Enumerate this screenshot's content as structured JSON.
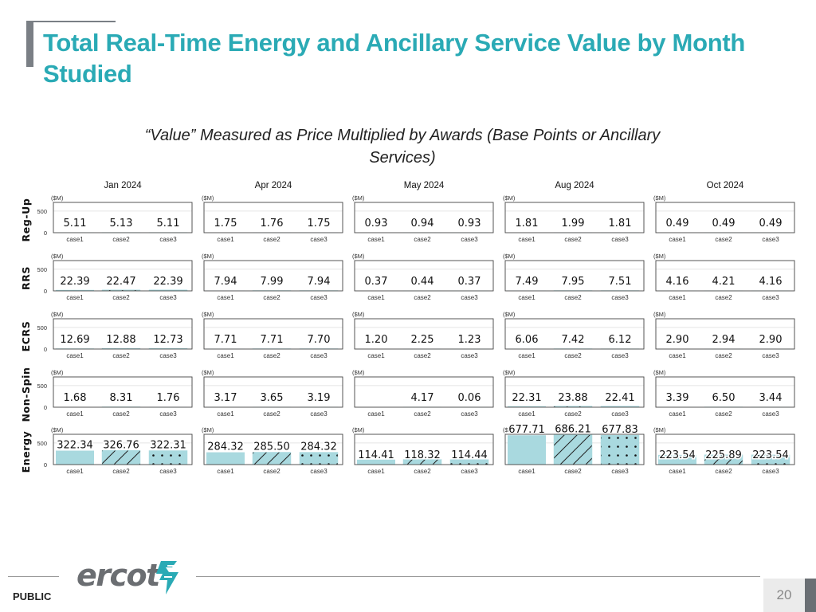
{
  "slide": {
    "title": "Total Real-Time Energy and Ancillary Service Value by Month Studied",
    "subtitle": "“Value” Measured as Price Multiplied by Awards (Base Points or Ancillary Services)",
    "footer_label": "PUBLIC",
    "logo_text": "ercot",
    "page_number": "20"
  },
  "colors": {
    "title": "#2aaab5",
    "bar_fill": "#a9d9df",
    "frame": "#444444",
    "grid": "#dcdcdc"
  },
  "chart_data": {
    "type": "bar",
    "months": [
      "Jan 2024",
      "Apr 2024",
      "May 2024",
      "Aug 2024",
      "Oct 2024"
    ],
    "services": [
      "Reg-Up",
      "RRS",
      "ECRS",
      "Non-Spin",
      "Energy"
    ],
    "categories": [
      "case1",
      "case2",
      "case3"
    ],
    "case_patterns": [
      "solid",
      "hatch",
      "dots"
    ],
    "unit_label": "($M)",
    "yticks": [
      "0",
      "500"
    ],
    "ylim": [
      0,
      700
    ],
    "grid": true,
    "panels": [
      [
        [
          5.11,
          5.13,
          5.11
        ],
        [
          1.75,
          1.76,
          1.75
        ],
        [
          0.93,
          0.94,
          0.93
        ],
        [
          1.81,
          1.99,
          1.81
        ],
        [
          0.49,
          0.49,
          0.49
        ]
      ],
      [
        [
          22.39,
          22.47,
          22.39
        ],
        [
          7.94,
          7.99,
          7.94
        ],
        [
          0.37,
          0.44,
          0.37
        ],
        [
          7.49,
          7.95,
          7.51
        ],
        [
          4.16,
          4.21,
          4.16
        ]
      ],
      [
        [
          12.69,
          12.88,
          12.73
        ],
        [
          7.71,
          7.71,
          7.7
        ],
        [
          1.2,
          2.25,
          1.23
        ],
        [
          6.06,
          7.42,
          6.12
        ],
        [
          2.9,
          2.94,
          2.9
        ]
      ],
      [
        [
          1.68,
          8.31,
          1.76
        ],
        [
          3.17,
          3.65,
          3.19
        ],
        [
          null,
          4.17,
          0.06
        ],
        [
          22.31,
          23.88,
          22.41
        ],
        [
          3.39,
          6.5,
          3.44
        ]
      ],
      [
        [
          322.34,
          326.76,
          322.31
        ],
        [
          284.32,
          285.5,
          284.32
        ],
        [
          114.41,
          118.32,
          114.44
        ],
        [
          677.71,
          686.21,
          677.83
        ],
        [
          223.54,
          225.89,
          223.54
        ]
      ]
    ],
    "labels": [
      [
        [
          "5.11",
          "5.13",
          "5.11"
        ],
        [
          "1.75",
          "1.76",
          "1.75"
        ],
        [
          "0.93",
          "0.94",
          "0.93"
        ],
        [
          "1.81",
          "1.99",
          "1.81"
        ],
        [
          "0.49",
          "0.49",
          "0.49"
        ]
      ],
      [
        [
          "22.39",
          "22.47",
          "22.39"
        ],
        [
          "7.94",
          "7.99",
          "7.94"
        ],
        [
          "0.37",
          "0.44",
          "0.37"
        ],
        [
          "7.49",
          "7.95",
          "7.51"
        ],
        [
          "4.16",
          "4.21",
          "4.16"
        ]
      ],
      [
        [
          "12.69",
          "12.88",
          "12.73"
        ],
        [
          "7.71",
          "7.71",
          "7.70"
        ],
        [
          "1.20",
          "2.25",
          "1.23"
        ],
        [
          "6.06",
          "7.42",
          "6.12"
        ],
        [
          "2.90",
          "2.94",
          "2.90"
        ]
      ],
      [
        [
          "1.68",
          "8.31",
          "1.76"
        ],
        [
          "3.17",
          "3.65",
          "3.19"
        ],
        [
          "",
          "4.17",
          "0.06"
        ],
        [
          "22.31",
          "23.88",
          "22.41"
        ],
        [
          "3.39",
          "6.50",
          "3.44"
        ]
      ],
      [
        [
          "322.34",
          "326.76",
          "322.31"
        ],
        [
          "284.32",
          "285.50",
          "284.32"
        ],
        [
          "114.41",
          "118.32",
          "114.44"
        ],
        [
          "677.71",
          "686.21",
          "677.83"
        ],
        [
          "223.54",
          "225.89",
          "223.54"
        ]
      ]
    ]
  }
}
